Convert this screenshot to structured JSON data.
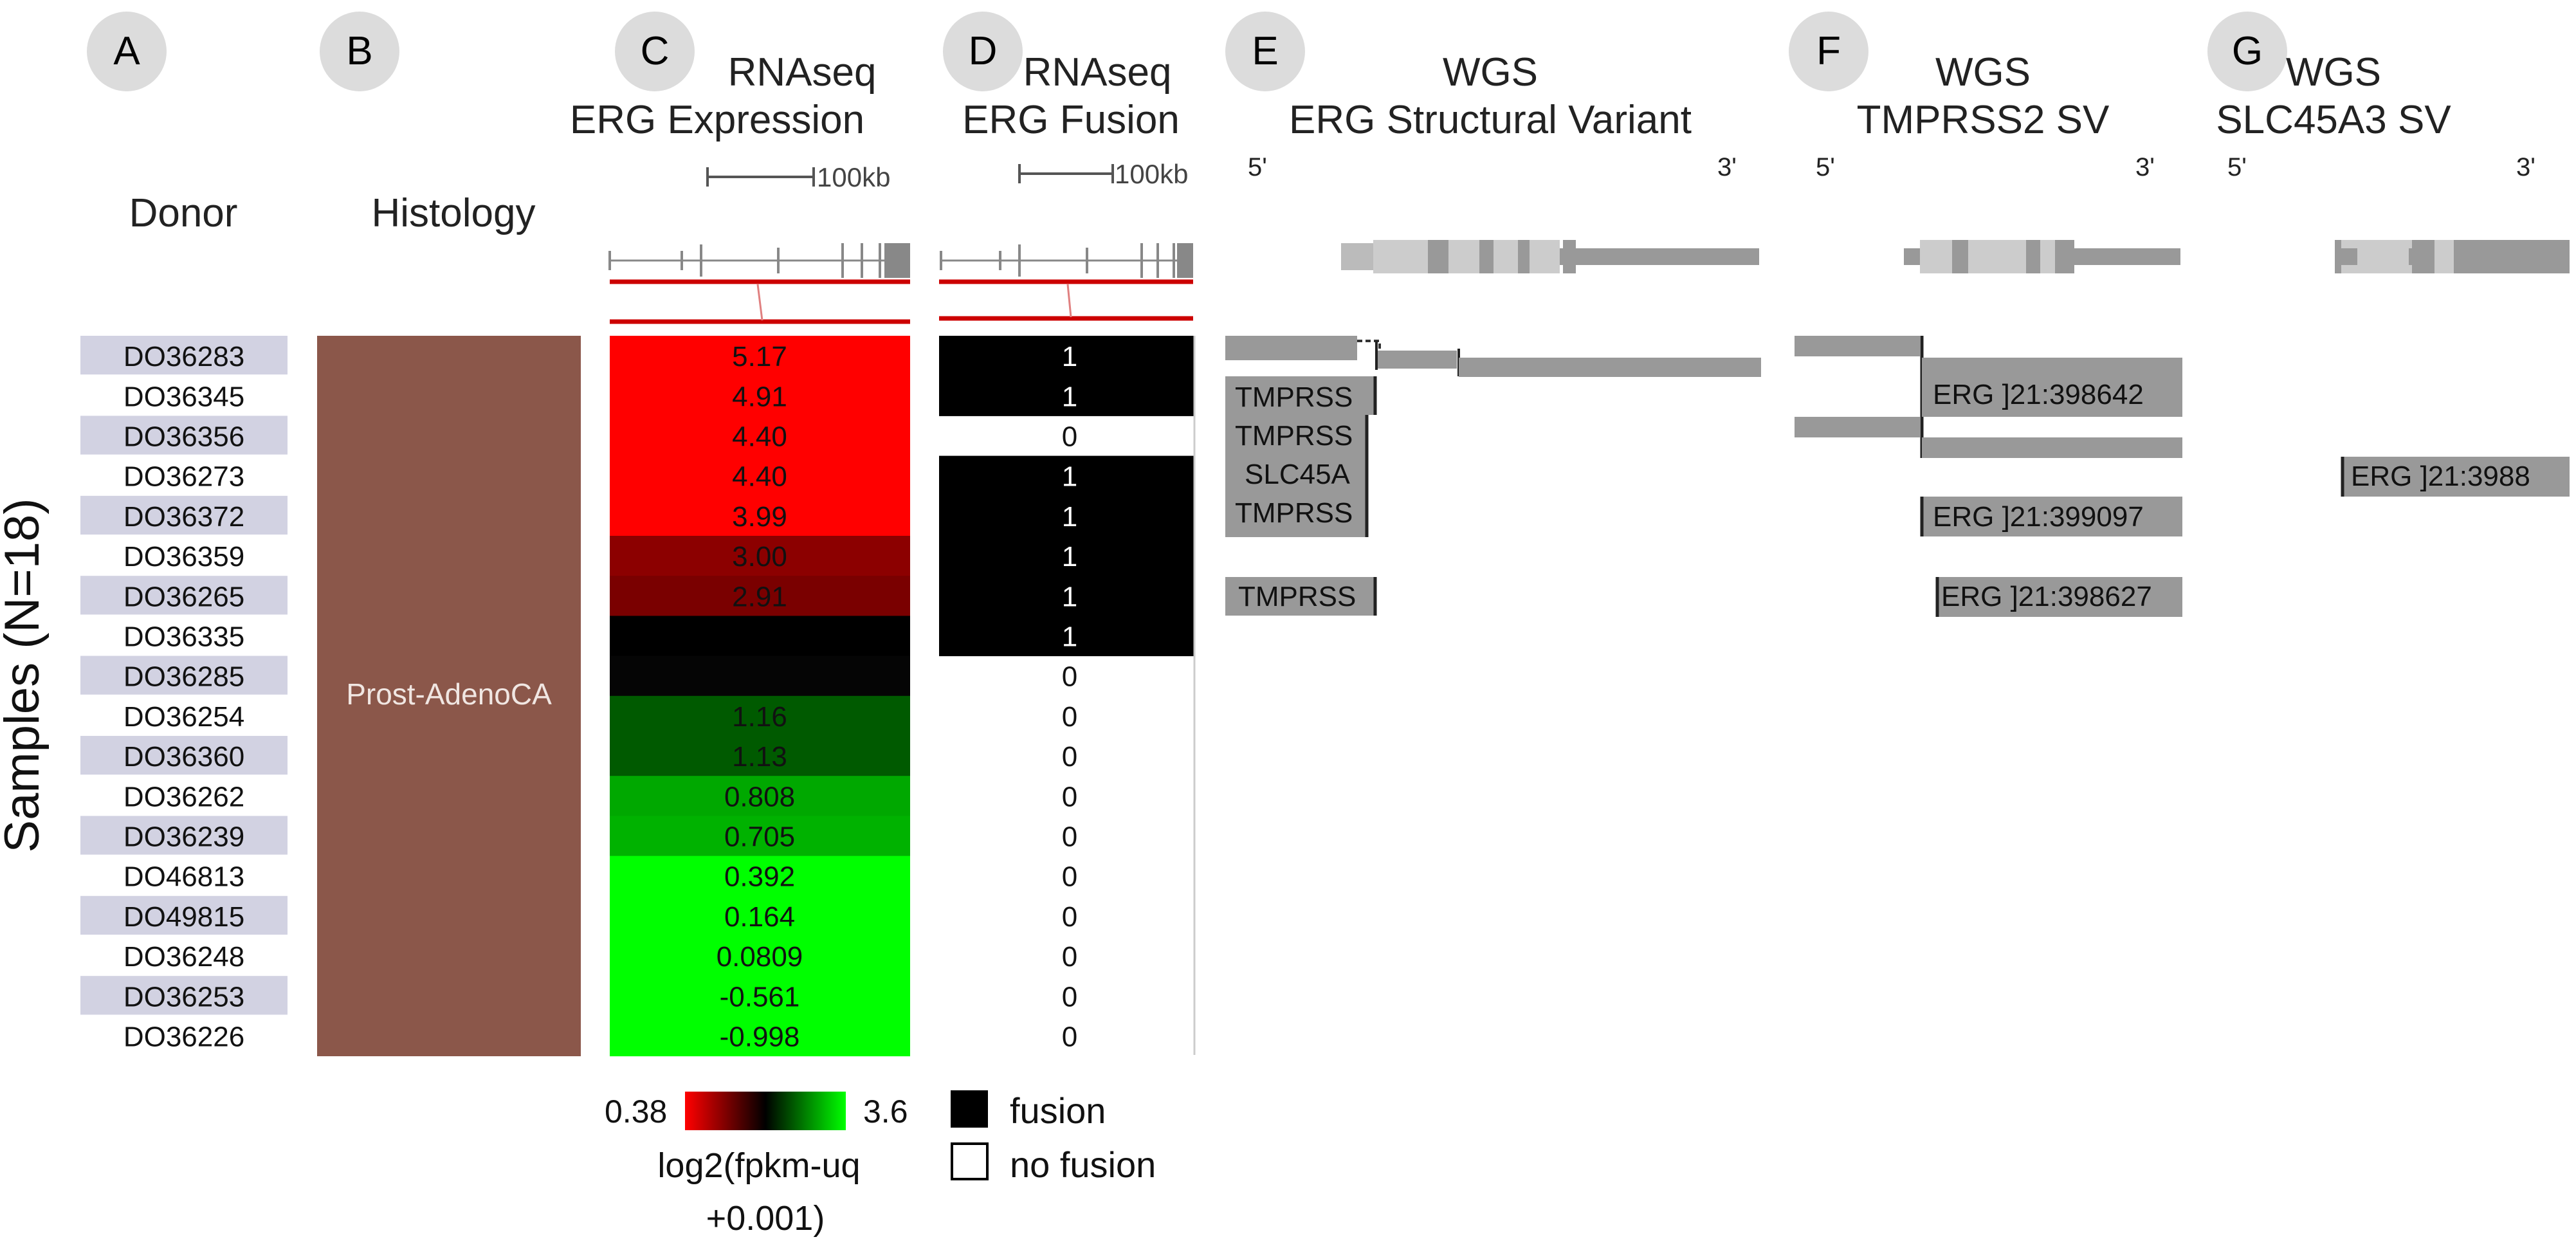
{
  "panel_letters": [
    "A",
    "B",
    "C",
    "D",
    "E",
    "F",
    "G"
  ],
  "headers": {
    "donor": "Donor",
    "histology": "Histology",
    "c_line1": "RNAseq",
    "c_line2": "ERG Expression",
    "d_line1": "RNAseq",
    "d_line2": "ERG Fusion",
    "e_line1": "WGS",
    "e_line2": "ERG Structural Variant",
    "f_line1": "WGS",
    "f_line2": "TMPRSS2 SV",
    "g_line1": "WGS",
    "g_line2": "SLC45A3 SV"
  },
  "scale_label": "100kb",
  "five_prime": "5'",
  "three_prime": "3'",
  "ylabel": "Samples (N=18)",
  "histology_label": "Prost-AdenoCA",
  "samples": [
    {
      "donor": "DO36283",
      "expr": "5.17",
      "expr_color": "#ff0000",
      "fusion": "1"
    },
    {
      "donor": "DO36345",
      "expr": "4.91",
      "expr_color": "#ff0000",
      "fusion": "1"
    },
    {
      "donor": "DO36356",
      "expr": "4.40",
      "expr_color": "#ff0000",
      "fusion": "0"
    },
    {
      "donor": "DO36273",
      "expr": "4.40",
      "expr_color": "#ff0000",
      "fusion": "1"
    },
    {
      "donor": "DO36372",
      "expr": "3.99",
      "expr_color": "#ff0000",
      "fusion": "1"
    },
    {
      "donor": "DO36359",
      "expr": "3.00",
      "expr_color": "#8c0000",
      "fusion": "1"
    },
    {
      "donor": "DO36265",
      "expr": "2.91",
      "expr_color": "#7a0000",
      "fusion": "1"
    },
    {
      "donor": "DO36335",
      "expr": "",
      "expr_color": "#000000",
      "fusion": "1"
    },
    {
      "donor": "DO36285",
      "expr": "",
      "expr_color": "#050505",
      "fusion": "0"
    },
    {
      "donor": "DO36254",
      "expr": "1.16",
      "expr_color": "#005a00",
      "fusion": "0"
    },
    {
      "donor": "DO36360",
      "expr": "1.13",
      "expr_color": "#005a00",
      "fusion": "0"
    },
    {
      "donor": "DO36262",
      "expr": "0.808",
      "expr_color": "#00a800",
      "fusion": "0"
    },
    {
      "donor": "DO36239",
      "expr": "0.705",
      "expr_color": "#00b200",
      "fusion": "0"
    },
    {
      "donor": "DO46813",
      "expr": "0.392",
      "expr_color": "#00ff00",
      "fusion": "0"
    },
    {
      "donor": "DO49815",
      "expr": "0.164",
      "expr_color": "#00ff00",
      "fusion": "0"
    },
    {
      "donor": "DO36248",
      "expr": "0.0809",
      "expr_color": "#00ff00",
      "fusion": "0"
    },
    {
      "donor": "DO36253",
      "expr": "-0.561",
      "expr_color": "#00ff00",
      "fusion": "0"
    },
    {
      "donor": "DO36226",
      "expr": "-0.998",
      "expr_color": "#00ff00",
      "fusion": "0"
    }
  ],
  "sv_labels": {
    "e_row2": "TMPRSS",
    "e_row3": "TMPRSS",
    "e_row4": "SLC45A",
    "e_row5": "TMPRSS",
    "e_row7": "TMPRSS",
    "f_row2": "ERG ]21:398642",
    "f_row5": "ERG ]21:399097",
    "f_row7": "ERG ]21:398627",
    "g_row4": "ERG ]21:3988"
  },
  "color_legend": {
    "min": "0.38",
    "max": "3.6",
    "title_line1": "log2(fpkm-uq",
    "title_line2": "+0.001)"
  },
  "fusion_legend": {
    "fusion": "fusion",
    "no_fusion": "no fusion"
  },
  "colors": {
    "histology": "#8b574a",
    "donor_stripe": "#d2d2e2",
    "circle": "#dcdcdc",
    "track_grey": "#999999",
    "gene_light": "#cccccc",
    "red_line": "#cc0000"
  }
}
